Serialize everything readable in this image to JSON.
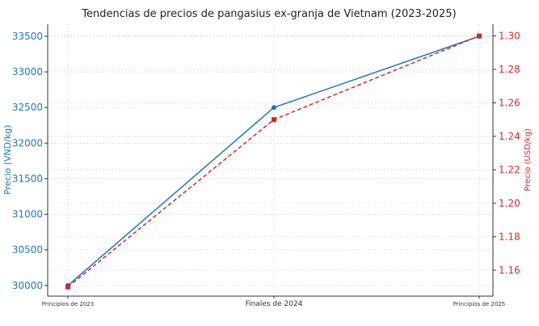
{
  "chart_data": {
    "type": "line",
    "title": "Tendencias de precios de pangasius ex-granja de Vietnam (2023-2025)",
    "categories": [
      "Principios de 2023",
      "Finales de 2024",
      "Principios de 2025"
    ],
    "series": [
      {
        "name": "Precio (VND/kg)",
        "axis": "left",
        "color": "#1f77b4",
        "style": "solid",
        "marker": "circle",
        "values": [
          30000,
          32500,
          33500
        ]
      },
      {
        "name": "Precio (USD/kg)",
        "axis": "right",
        "color": "#d62728",
        "style": "dashed",
        "marker": "square",
        "values": [
          1.15,
          1.25,
          1.3
        ]
      }
    ],
    "ylabel_left": "Precio (VND/kg)",
    "ylabel_right": "Precio (USD/kg)",
    "ylim_left": [
      29850,
      33670
    ],
    "ylim_right": [
      1.1445,
      1.307
    ],
    "yticks_left": [
      "30000",
      "30500",
      "31000",
      "31500",
      "32000",
      "32500",
      "33000",
      "33500"
    ],
    "yticks_right": [
      "1.16",
      "1.18",
      "1.20",
      "1.22",
      "1.24",
      "1.26",
      "1.28",
      "1.30"
    ],
    "grid": true
  }
}
